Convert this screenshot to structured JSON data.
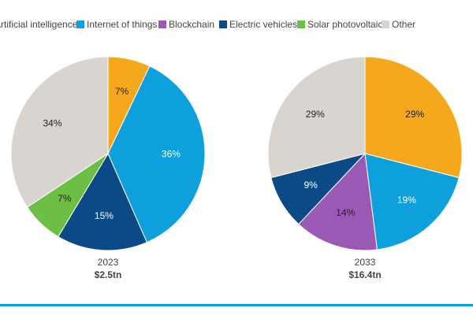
{
  "chart_data": [
    {
      "type": "pie",
      "label": "2023",
      "total": "$2.5tn",
      "categories": [
        "Artificial intelligence",
        "Internet of things",
        "Blockchain",
        "Electric vehicles",
        "Solar photovoltaic",
        "Other"
      ],
      "colors": [
        "#f5a81c",
        "#0ea0dd",
        "#9b59b6",
        "#0b4a86",
        "#6dbe45",
        "#d9d4cf"
      ],
      "values": [
        7,
        36,
        null,
        15,
        7,
        34
      ],
      "value_labels": [
        "7%",
        "36%",
        null,
        "15%",
        "7%",
        "34%"
      ]
    },
    {
      "type": "pie",
      "label": "2033",
      "total": "$16.4tn",
      "categories": [
        "Artificial intelligence",
        "Internet of things",
        "Blockchain",
        "Electric vehicles",
        "Solar photovoltaic",
        "Other"
      ],
      "colors": [
        "#f5a81c",
        "#0ea0dd",
        "#9b59b6",
        "#0b4a86",
        "#6dbe45",
        "#d9d4cf"
      ],
      "values": [
        29,
        19,
        14,
        9,
        null,
        29
      ],
      "value_labels": [
        "29%",
        "19%",
        "14%",
        "9%",
        null,
        "29%"
      ]
    }
  ]
}
